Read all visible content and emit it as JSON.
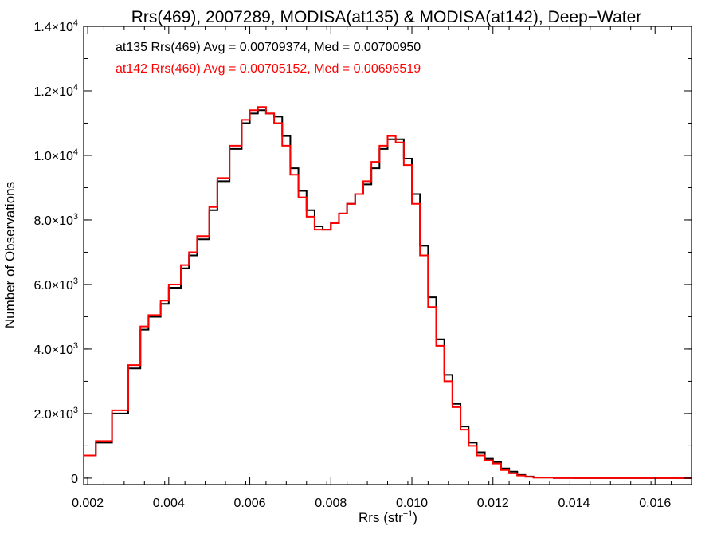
{
  "chart_data": {
    "type": "line",
    "title": "Rrs(469), 2007289, MODISA(at135) & MODISA(at142), Deep−Water",
    "xlabel": "Rrs (str",
    "xlabel_sup": "−1",
    "xlabel_close": ")",
    "ylabel": "Number of Observations",
    "xlim": [
      0.0019,
      0.0169
    ],
    "ylim": [
      -200,
      14000
    ],
    "x_ticks": [
      {
        "value": 0.002,
        "label": "0.002"
      },
      {
        "value": 0.004,
        "label": "0.004"
      },
      {
        "value": 0.006,
        "label": "0.006"
      },
      {
        "value": 0.008,
        "label": "0.008"
      },
      {
        "value": 0.01,
        "label": "0.010"
      },
      {
        "value": 0.012,
        "label": "0.012"
      },
      {
        "value": 0.014,
        "label": "0.014"
      },
      {
        "value": 0.016,
        "label": "0.016"
      }
    ],
    "y_ticks": [
      {
        "value": 0,
        "mantissa": "0",
        "exp": ""
      },
      {
        "value": 2000,
        "mantissa": "2.0×10",
        "exp": "3"
      },
      {
        "value": 4000,
        "mantissa": "4.0×10",
        "exp": "3"
      },
      {
        "value": 6000,
        "mantissa": "6.0×10",
        "exp": "3"
      },
      {
        "value": 8000,
        "mantissa": "8.0×10",
        "exp": "3"
      },
      {
        "value": 10000,
        "mantissa": "1.0×10",
        "exp": "4"
      },
      {
        "value": 12000,
        "mantissa": "1.2×10",
        "exp": "4"
      },
      {
        "value": 14000,
        "mantissa": "1.4×10",
        "exp": "4"
      }
    ],
    "legend_placement": "top-left",
    "series": [
      {
        "name": "at135 Rrs(469) Avg = 0.00709374, Med = 0.00700950",
        "color": "#000000",
        "x": [
          0.0019,
          0.0022,
          0.0026,
          0.003,
          0.0033,
          0.0035,
          0.0038,
          0.004,
          0.0043,
          0.0045,
          0.0047,
          0.005,
          0.0052,
          0.0055,
          0.0058,
          0.006,
          0.0062,
          0.0064,
          0.0066,
          0.0068,
          0.007,
          0.0072,
          0.0074,
          0.0076,
          0.0078,
          0.008,
          0.0082,
          0.0084,
          0.0086,
          0.0088,
          0.009,
          0.0092,
          0.0094,
          0.0096,
          0.0098,
          0.01,
          0.0102,
          0.0104,
          0.0106,
          0.0108,
          0.011,
          0.0112,
          0.0114,
          0.0116,
          0.0118,
          0.012,
          0.0122,
          0.0124,
          0.0126,
          0.0128,
          0.013,
          0.0135,
          0.014,
          0.015,
          0.016,
          0.0169
        ],
        "y": [
          700,
          1100,
          2000,
          3400,
          4600,
          5000,
          5400,
          5900,
          6500,
          6900,
          7400,
          8300,
          9200,
          10200,
          11000,
          11300,
          11400,
          11300,
          11200,
          10600,
          9600,
          8900,
          8300,
          7800,
          7700,
          7900,
          8200,
          8500,
          8800,
          9100,
          9600,
          10200,
          10500,
          10500,
          9900,
          8800,
          7200,
          5600,
          4300,
          3200,
          2300,
          1600,
          1100,
          800,
          600,
          500,
          300,
          200,
          100,
          50,
          20,
          5,
          0,
          0,
          0,
          0
        ]
      },
      {
        "name": "at142 Rrs(469) Avg = 0.00705152, Med = 0.00696519",
        "color": "#ff0000",
        "x": [
          0.0019,
          0.0022,
          0.0026,
          0.003,
          0.0033,
          0.0035,
          0.0038,
          0.004,
          0.0043,
          0.0045,
          0.0047,
          0.005,
          0.0052,
          0.0055,
          0.0058,
          0.006,
          0.0062,
          0.0064,
          0.0066,
          0.0068,
          0.007,
          0.0072,
          0.0074,
          0.0076,
          0.0078,
          0.008,
          0.0082,
          0.0084,
          0.0086,
          0.0088,
          0.009,
          0.0092,
          0.0094,
          0.0096,
          0.0098,
          0.01,
          0.0102,
          0.0104,
          0.0106,
          0.0108,
          0.011,
          0.0112,
          0.0114,
          0.0116,
          0.0118,
          0.012,
          0.0122,
          0.0124,
          0.0126,
          0.0128,
          0.013,
          0.0135,
          0.014,
          0.015,
          0.016,
          0.0169
        ],
        "y": [
          700,
          1150,
          2100,
          3500,
          4700,
          5050,
          5500,
          6000,
          6600,
          7000,
          7500,
          8400,
          9300,
          10300,
          11100,
          11400,
          11500,
          11300,
          11000,
          10300,
          9400,
          8700,
          8100,
          7700,
          7700,
          7900,
          8200,
          8500,
          8800,
          9200,
          9800,
          10300,
          10600,
          10400,
          9700,
          8500,
          6900,
          5300,
          4100,
          3000,
          2200,
          1500,
          1000,
          700,
          550,
          450,
          250,
          150,
          80,
          40,
          15,
          5,
          0,
          0,
          0,
          0
        ]
      }
    ]
  }
}
